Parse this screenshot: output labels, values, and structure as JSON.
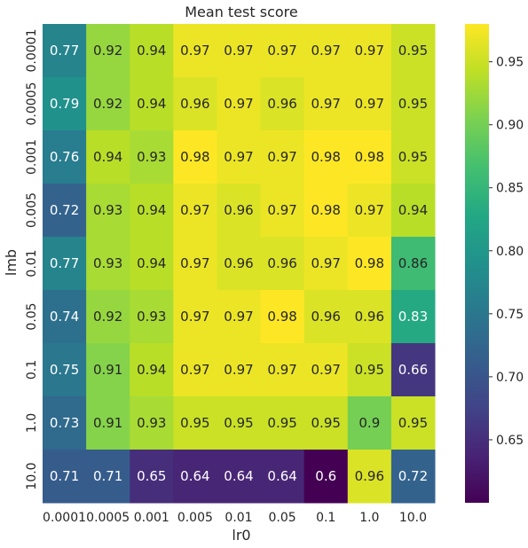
{
  "chart_data": {
    "type": "heatmap",
    "title": "Mean test score",
    "xlabel": "lr0",
    "ylabel": "lmb",
    "x_categories": [
      "0.0001",
      "0.0005",
      "0.001",
      "0.005",
      "0.01",
      "0.05",
      "0.1",
      "1.0",
      "10.0"
    ],
    "y_categories": [
      "0.0001",
      "0.0005",
      "0.001",
      "0.005",
      "0.01",
      "0.05",
      "0.1",
      "1.0",
      "10.0"
    ],
    "values": [
      [
        0.77,
        0.92,
        0.94,
        0.97,
        0.97,
        0.97,
        0.97,
        0.97,
        0.95
      ],
      [
        0.79,
        0.92,
        0.94,
        0.96,
        0.97,
        0.96,
        0.97,
        0.97,
        0.95
      ],
      [
        0.76,
        0.94,
        0.93,
        0.98,
        0.97,
        0.97,
        0.98,
        0.98,
        0.95
      ],
      [
        0.72,
        0.93,
        0.94,
        0.97,
        0.96,
        0.97,
        0.98,
        0.97,
        0.94
      ],
      [
        0.77,
        0.93,
        0.94,
        0.97,
        0.96,
        0.96,
        0.97,
        0.98,
        0.86
      ],
      [
        0.74,
        0.92,
        0.93,
        0.97,
        0.97,
        0.98,
        0.96,
        0.96,
        0.83
      ],
      [
        0.75,
        0.91,
        0.94,
        0.97,
        0.97,
        0.97,
        0.97,
        0.95,
        0.66
      ],
      [
        0.73,
        0.91,
        0.93,
        0.95,
        0.95,
        0.95,
        0.95,
        0.9,
        0.95
      ],
      [
        0.71,
        0.71,
        0.65,
        0.64,
        0.64,
        0.64,
        0.6,
        0.96,
        0.72
      ]
    ],
    "labels": [
      [
        "0.77",
        "0.92",
        "0.94",
        "0.97",
        "0.97",
        "0.97",
        "0.97",
        "0.97",
        "0.95"
      ],
      [
        "0.79",
        "0.92",
        "0.94",
        "0.96",
        "0.97",
        "0.96",
        "0.97",
        "0.97",
        "0.95"
      ],
      [
        "0.76",
        "0.94",
        "0.93",
        "0.98",
        "0.97",
        "0.97",
        "0.98",
        "0.98",
        "0.95"
      ],
      [
        "0.72",
        "0.93",
        "0.94",
        "0.97",
        "0.96",
        "0.97",
        "0.98",
        "0.97",
        "0.94"
      ],
      [
        "0.77",
        "0.93",
        "0.94",
        "0.97",
        "0.96",
        "0.96",
        "0.97",
        "0.98",
        "0.86"
      ],
      [
        "0.74",
        "0.92",
        "0.93",
        "0.97",
        "0.97",
        "0.98",
        "0.96",
        "0.96",
        "0.83"
      ],
      [
        "0.75",
        "0.91",
        "0.94",
        "0.97",
        "0.97",
        "0.97",
        "0.97",
        "0.95",
        "0.66"
      ],
      [
        "0.73",
        "0.91",
        "0.93",
        "0.95",
        "0.95",
        "0.95",
        "0.95",
        "0.9",
        "0.95"
      ],
      [
        "0.71",
        "0.71",
        "0.65",
        "0.64",
        "0.64",
        "0.64",
        "0.6",
        "0.96",
        "0.72"
      ]
    ],
    "colormap": "viridis",
    "vmin": 0.6,
    "vmax": 0.98,
    "colorbar_ticks": [
      "0.65",
      "0.70",
      "0.75",
      "0.80",
      "0.85",
      "0.90",
      "0.95"
    ],
    "grid": false,
    "legend": "colorbar-right"
  }
}
